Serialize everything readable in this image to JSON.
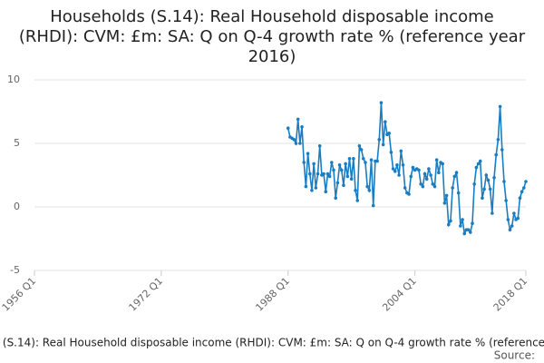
{
  "chart_data": {
    "type": "line",
    "title": "Households (S.14): Real Household disposable income (RHDI): CVM: £m: SA: Q on Q-4 growth rate % (reference year 2016)",
    "source": "Source:",
    "categories": [
      "1988 Q1",
      "1988 Q2",
      "1988 Q3",
      "1988 Q4",
      "1989 Q1",
      "1989 Q2",
      "1989 Q3",
      "1989 Q4",
      "1990 Q1",
      "1990 Q2",
      "1990 Q3",
      "1990 Q4",
      "1991 Q1",
      "1991 Q2",
      "1991 Q3",
      "1991 Q4",
      "1992 Q1",
      "1992 Q2",
      "1992 Q3",
      "1992 Q4",
      "1993 Q1",
      "1993 Q2",
      "1993 Q3",
      "1993 Q4",
      "1994 Q1",
      "1994 Q2",
      "1994 Q3",
      "1994 Q4",
      "1995 Q1",
      "1995 Q2",
      "1995 Q3",
      "1995 Q4",
      "1996 Q1",
      "1996 Q2",
      "1996 Q3",
      "1996 Q4",
      "1997 Q1",
      "1997 Q2",
      "1997 Q3",
      "1997 Q4",
      "1998 Q1",
      "1998 Q2",
      "1998 Q3",
      "1998 Q4",
      "1999 Q1",
      "1999 Q2",
      "1999 Q3",
      "1999 Q4",
      "2000 Q1",
      "2000 Q2",
      "2000 Q3",
      "2000 Q4",
      "2001 Q1",
      "2001 Q2",
      "2001 Q3",
      "2001 Q4",
      "2002 Q1",
      "2002 Q2",
      "2002 Q3",
      "2002 Q4",
      "2003 Q1",
      "2003 Q2",
      "2003 Q3",
      "2003 Q4",
      "2004 Q1",
      "2004 Q2",
      "2004 Q3",
      "2004 Q4",
      "2005 Q1",
      "2005 Q2",
      "2005 Q3",
      "2005 Q4",
      "2006 Q1",
      "2006 Q2",
      "2006 Q3",
      "2006 Q4",
      "2007 Q1",
      "2007 Q2",
      "2007 Q3",
      "2007 Q4",
      "2008 Q1",
      "2008 Q2",
      "2008 Q3",
      "2008 Q4",
      "2009 Q1",
      "2009 Q2",
      "2009 Q3",
      "2009 Q4",
      "2010 Q1",
      "2010 Q2",
      "2010 Q3",
      "2010 Q4",
      "2011 Q1",
      "2011 Q2",
      "2011 Q3",
      "2011 Q4",
      "2012 Q1",
      "2012 Q2",
      "2012 Q3",
      "2012 Q4",
      "2013 Q1",
      "2013 Q2",
      "2013 Q3",
      "2013 Q4",
      "2014 Q1",
      "2014 Q2",
      "2014 Q3",
      "2014 Q4",
      "2015 Q1",
      "2015 Q2",
      "2015 Q3",
      "2015 Q4",
      "2016 Q1",
      "2016 Q2",
      "2016 Q3",
      "2016 Q4",
      "2017 Q1",
      "2017 Q2",
      "2017 Q3",
      "2017 Q4",
      "2018 Q1"
    ],
    "series": [
      {
        "name": "Households (S.14): Real Household disposable income (RHDI): CVM: £m: SA: Q on Q-4 growth rate % (reference year 2016)",
        "color": "#1a7dc2",
        "values": [
          6.2,
          5.5,
          5.4,
          5.3,
          5.0,
          6.9,
          5.0,
          6.3,
          3.5,
          1.6,
          4.2,
          2.6,
          1.3,
          3.4,
          1.5,
          2.6,
          4.8,
          2.5,
          2.6,
          1.2,
          2.6,
          2.4,
          3.5,
          2.9,
          0.7,
          1.9,
          3.3,
          2.9,
          1.7,
          3.4,
          2.4,
          3.8,
          2.2,
          3.8,
          1.3,
          0.5,
          4.8,
          4.5,
          3.8,
          3.5,
          1.6,
          1.3,
          3.7,
          0.1,
          3.6,
          3.6,
          5.3,
          8.2,
          4.9,
          6.7,
          5.7,
          5.8,
          4.3,
          3.0,
          2.8,
          3.3,
          2.5,
          4.4,
          3.3,
          1.5,
          1.1,
          1.0,
          2.4,
          3.1,
          2.9,
          3.0,
          2.9,
          1.8,
          1.6,
          2.6,
          2.2,
          3.0,
          2.5,
          1.8,
          1.6,
          3.7,
          2.7,
          3.5,
          3.4,
          0.3,
          0.9,
          -1.4,
          -1.1,
          1.5,
          2.4,
          2.7,
          1.1,
          -1.5,
          -1.0,
          -2.1,
          -1.8,
          -1.8,
          -2.0,
          -1.3,
          1.8,
          3.1,
          3.4,
          3.6,
          0.7,
          1.4,
          2.5,
          2.1,
          1.4,
          -0.5,
          2.3,
          4.1,
          5.3,
          7.9,
          4.5,
          2.0,
          0.5,
          -1.0,
          -1.8,
          -1.5,
          -0.5,
          -1.0,
          -0.9,
          0.7,
          1.2,
          1.5,
          2.0
        ]
      }
    ],
    "xlim": [
      "1956 Q1",
      "2018 Q1"
    ],
    "xticks": [
      "1956 Q1",
      "1972 Q1",
      "1988 Q1",
      "2004 Q1",
      "2018 Q1"
    ],
    "ylim": [
      -5,
      10
    ],
    "yticks": [
      -5,
      0,
      5,
      10
    ],
    "grid": true
  }
}
